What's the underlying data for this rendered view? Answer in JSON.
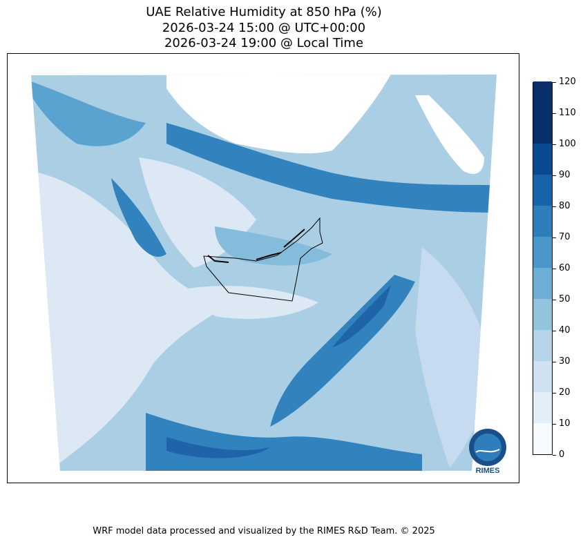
{
  "title": {
    "line1": "UAE Relative Humidity at 850 hPa (%)",
    "line2": "2026-03-24 15:00 @ UTC+00:00",
    "line3": "2026-03-24 19:00 @ Local Time"
  },
  "colorbar": {
    "levels": [
      0,
      10,
      20,
      30,
      40,
      50,
      60,
      70,
      80,
      90,
      100,
      110,
      120
    ],
    "labels": [
      "0",
      "10",
      "20",
      "30",
      "40",
      "50",
      "60",
      "70",
      "80",
      "90",
      "100",
      "110",
      "120"
    ],
    "colors": [
      "#f7fbff",
      "#e3eef9",
      "#cfe1f2",
      "#b5d4e9",
      "#93c4de",
      "#6daed5",
      "#4b97c9",
      "#2f7ebc",
      "#1864aa",
      "#0a4a90",
      "#08306b",
      "#08306b"
    ]
  },
  "map": {
    "region": "UAE",
    "colors": {
      "very_low": "#dce9f5",
      "low": "#c6dbef",
      "mid_low": "#aacfe5",
      "mid": "#85bcdc",
      "mid_high": "#5aa2cf",
      "high": "#3182bd",
      "very_high": "#1f64a8",
      "no_data": "#ffffff",
      "border": "#000000"
    }
  },
  "logo": {
    "text": "RIMES"
  },
  "footer": {
    "credit": "WRF model data processed and visualized by the RIMES R&D Team. © 2025"
  }
}
